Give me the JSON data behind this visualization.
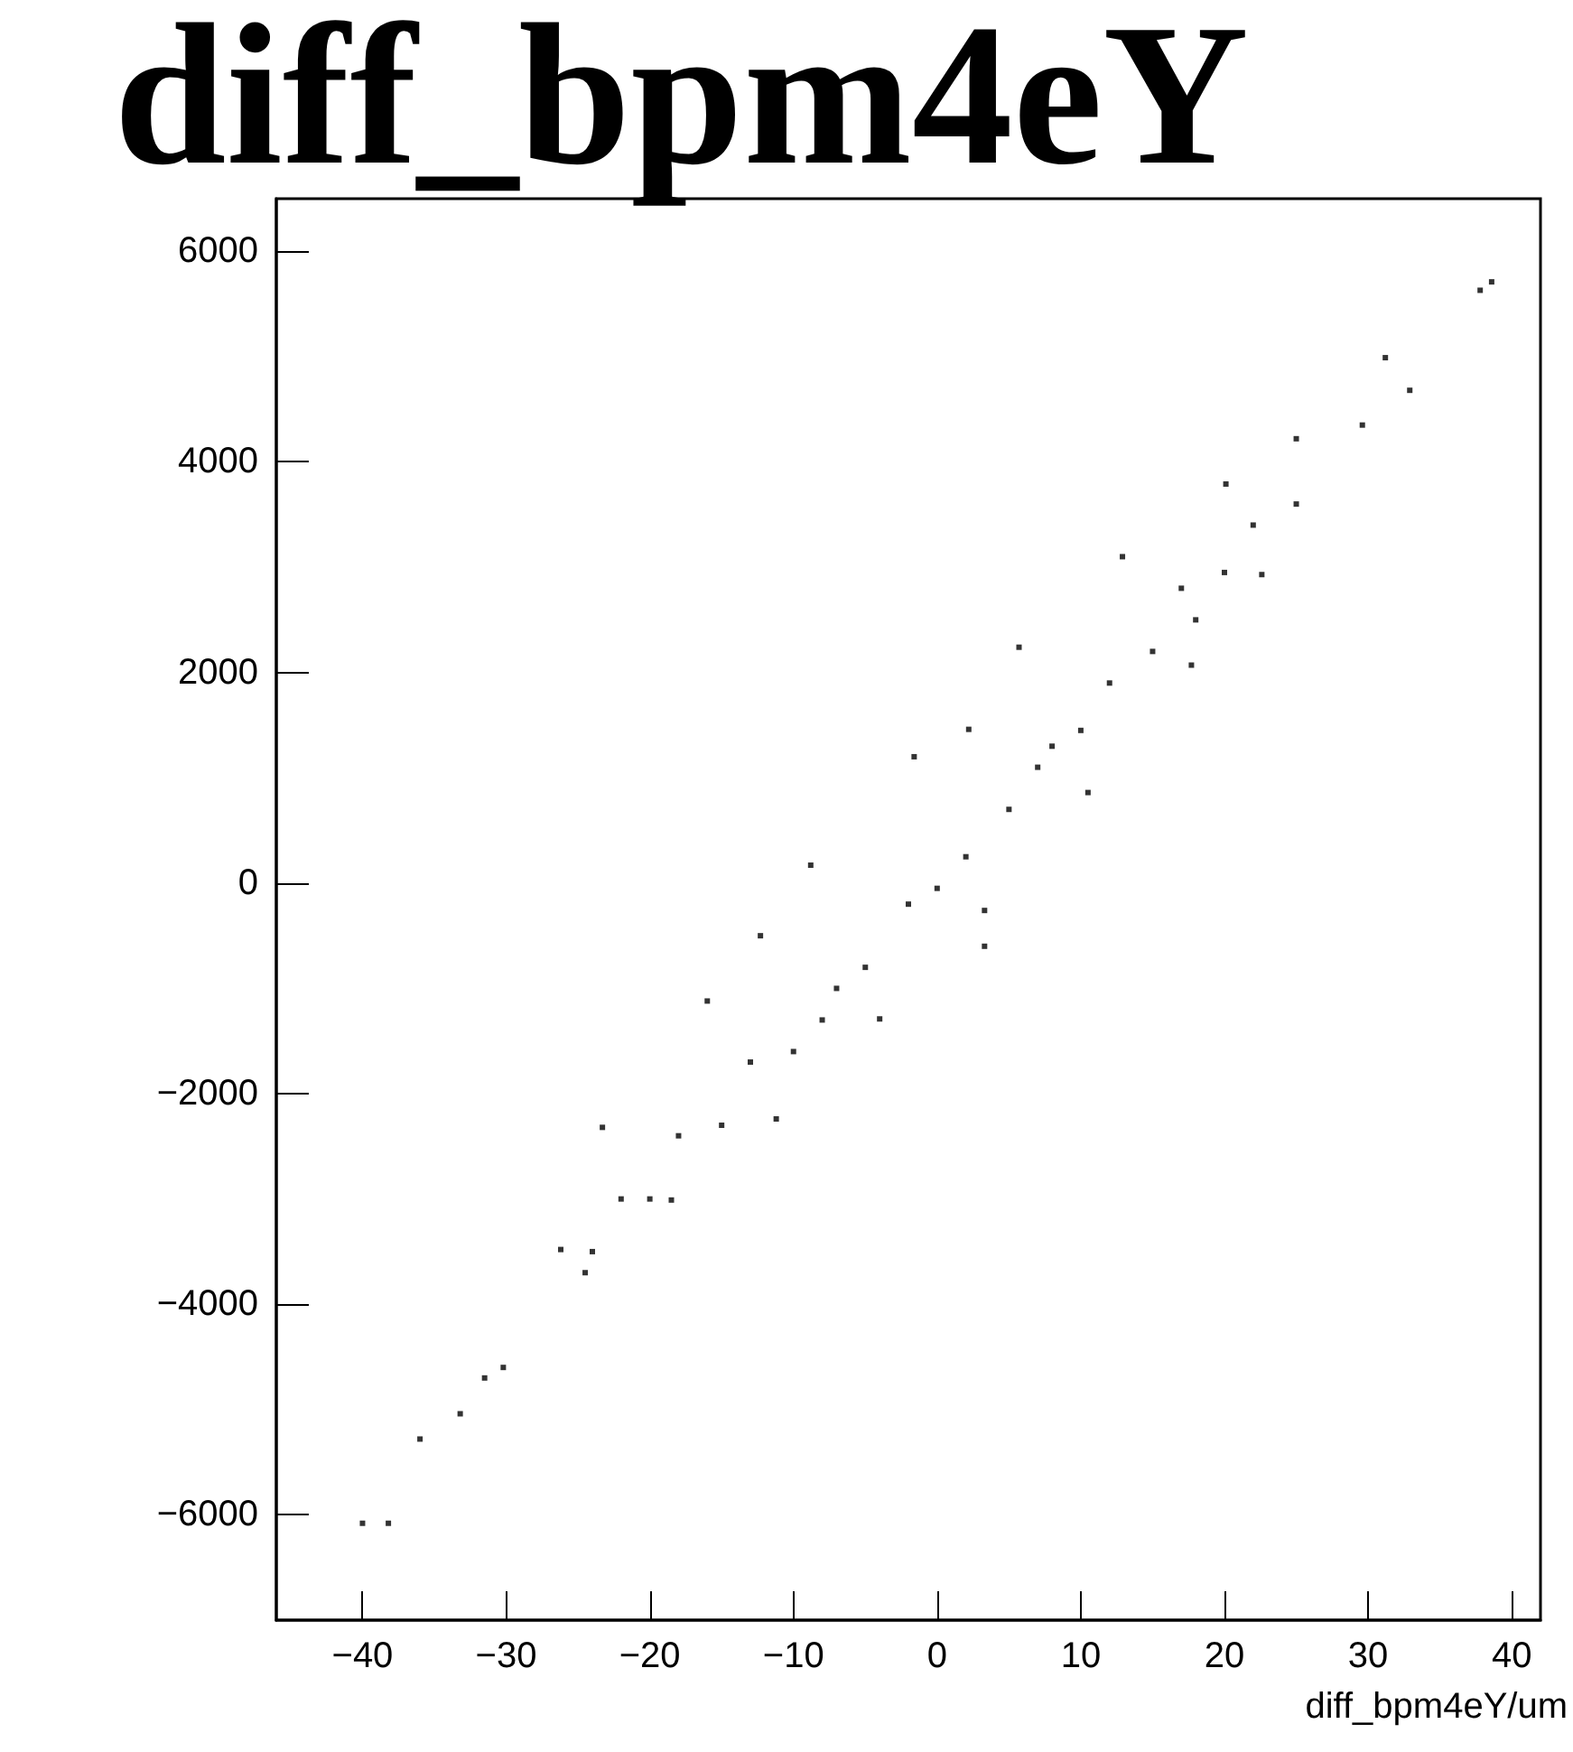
{
  "chart_data": {
    "type": "scatter",
    "title": "diff_bpm4eY",
    "xlabel": "diff_bpm4eY/um",
    "xlim": [
      -46,
      42
    ],
    "xticks": [
      -40,
      -30,
      -20,
      -10,
      0,
      10,
      20,
      30,
      40
    ],
    "ylim": [
      -7000,
      6500
    ],
    "yticks": [
      -6000,
      -4000,
      -2000,
      0,
      2000,
      4000,
      6000
    ],
    "grid": false,
    "marker": "square",
    "series": [
      {
        "color": "#000000",
        "x": [
          -40,
          -38.2,
          -36,
          -33.2,
          -31.5,
          -30.2,
          -26.2,
          -12.3,
          3.3,
          2.2,
          37.8,
          38.6,
          32.9,
          31.2,
          29.6,
          -24,
          -20,
          -15,
          -10,
          -5,
          0,
          5,
          10,
          15,
          20,
          25,
          -23.3,
          -16,
          -8.8,
          -1.6,
          5.7,
          12.9,
          20.1,
          25,
          -24.5,
          -18.5,
          -11.2,
          -4,
          3.3,
          10.5,
          17.7,
          22.6,
          -22,
          -13,
          -7,
          -2,
          2,
          7,
          12,
          17,
          22,
          -18,
          -8,
          8,
          18
        ],
        "values": [
          -6080,
          -6080,
          -5280,
          -5040,
          -4700,
          -4600,
          -3480,
          -500,
          -600,
          1460,
          5630,
          5710,
          4680,
          4990,
          4350,
          -3500,
          -3000,
          -2300,
          -1600,
          -800,
          -50,
          700,
          1450,
          2200,
          2950,
          3600,
          -2320,
          -1120,
          170,
          1200,
          2240,
          3100,
          3790,
          4220,
          -3700,
          -3010,
          -2240,
          -1290,
          -260,
          860,
          2070,
          2930,
          -3000,
          -1700,
          -1000,
          -200,
          250,
          1100,
          1900,
          2800,
          3400,
          -2400,
          -1300,
          1300,
          2500
        ]
      }
    ]
  }
}
